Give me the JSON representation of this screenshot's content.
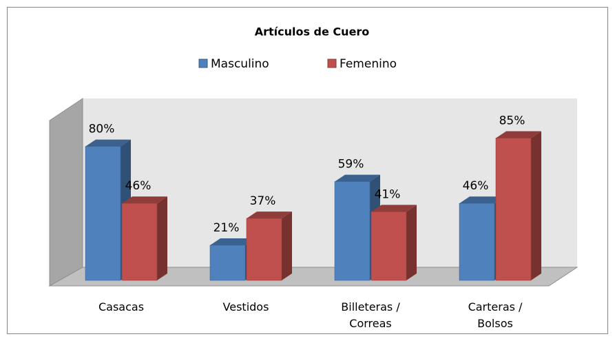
{
  "chart_data": {
    "type": "bar3d",
    "title": "Artículos de Cuero",
    "categories": [
      "Casacas",
      "Vestidos",
      "Billeteras / Correas",
      "Carteras / Bolsos"
    ],
    "series": [
      {
        "name": "Masculino",
        "color": "#4f81bd",
        "values": [
          80,
          21,
          59,
          46
        ],
        "value_labels": [
          "80%",
          "21%",
          "59%",
          "46%"
        ]
      },
      {
        "name": "Femenino",
        "color": "#c0504d",
        "values": [
          46,
          37,
          41,
          85
        ],
        "value_labels": [
          "46%",
          "37%",
          "41%",
          "85%"
        ]
      }
    ],
    "ylim": [
      0,
      100
    ],
    "legend": "top"
  }
}
